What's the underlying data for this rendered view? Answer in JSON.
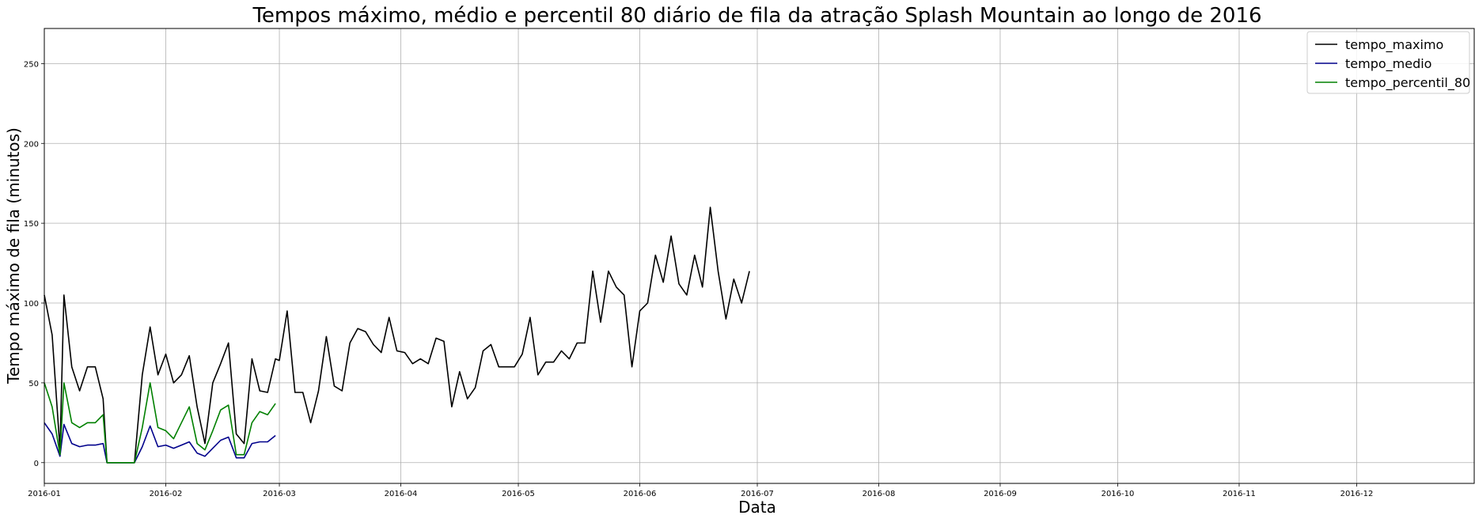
{
  "chart_data": {
    "type": "line",
    "title": "Tempos máximo, médio e percentil 80 diário de fila da atração Splash Mountain ao longo de 2016",
    "xlabel": "Data",
    "ylabel": "Tempo máximo de fila (minutos)",
    "xlim": [
      "2016-01-01",
      "2016-12-31"
    ],
    "ylim": [
      -13,
      272
    ],
    "x_ticks": [
      "2016-01",
      "2016-02",
      "2016-03",
      "2016-04",
      "2016-05",
      "2016-06",
      "2016-07",
      "2016-08",
      "2016-09",
      "2016-10",
      "2016-11",
      "2016-12"
    ],
    "y_ticks": [
      0,
      50,
      100,
      150,
      200,
      250
    ],
    "grid": true,
    "legend_position": "top-right",
    "series": [
      {
        "name": "tempo_maximo",
        "color": "#000000",
        "points": [
          [
            "2016-01-01",
            105
          ],
          [
            "2016-01-03",
            80
          ],
          [
            "2016-01-05",
            8
          ],
          [
            "2016-01-06",
            105
          ],
          [
            "2016-01-08",
            60
          ],
          [
            "2016-01-10",
            45
          ],
          [
            "2016-01-12",
            60
          ],
          [
            "2016-01-14",
            60
          ],
          [
            "2016-01-16",
            40
          ],
          [
            "2016-01-17",
            0
          ],
          [
            "2016-01-24",
            0
          ],
          [
            "2016-01-26",
            55
          ],
          [
            "2016-01-28",
            85
          ],
          [
            "2016-01-30",
            55
          ],
          [
            "2016-02-01",
            68
          ],
          [
            "2016-02-03",
            50
          ],
          [
            "2016-02-05",
            55
          ],
          [
            "2016-02-07",
            67
          ],
          [
            "2016-02-09",
            35
          ],
          [
            "2016-02-11",
            12
          ],
          [
            "2016-02-13",
            50
          ],
          [
            "2016-02-15",
            62
          ],
          [
            "2016-02-17",
            75
          ],
          [
            "2016-02-19",
            18
          ],
          [
            "2016-02-21",
            12
          ],
          [
            "2016-02-23",
            65
          ],
          [
            "2016-02-25",
            45
          ],
          [
            "2016-02-27",
            44
          ],
          [
            "2016-02-29",
            65
          ],
          [
            "2016-03-01",
            64
          ],
          [
            "2016-03-03",
            95
          ],
          [
            "2016-03-05",
            44
          ],
          [
            "2016-03-07",
            44
          ],
          [
            "2016-03-09",
            25
          ],
          [
            "2016-03-11",
            45
          ],
          [
            "2016-03-13",
            79
          ],
          [
            "2016-03-15",
            48
          ],
          [
            "2016-03-17",
            45
          ],
          [
            "2016-03-19",
            75
          ],
          [
            "2016-03-21",
            84
          ],
          [
            "2016-03-23",
            82
          ],
          [
            "2016-03-25",
            74
          ],
          [
            "2016-03-27",
            69
          ],
          [
            "2016-03-29",
            91
          ],
          [
            "2016-03-31",
            70
          ],
          [
            "2016-04-02",
            69
          ],
          [
            "2016-04-04",
            62
          ],
          [
            "2016-04-06",
            65
          ],
          [
            "2016-04-08",
            62
          ],
          [
            "2016-04-10",
            78
          ],
          [
            "2016-04-12",
            76
          ],
          [
            "2016-04-14",
            35
          ],
          [
            "2016-04-16",
            57
          ],
          [
            "2016-04-18",
            40
          ],
          [
            "2016-04-20",
            47
          ],
          [
            "2016-04-22",
            70
          ],
          [
            "2016-04-24",
            74
          ],
          [
            "2016-04-26",
            60
          ],
          [
            "2016-04-28",
            60
          ],
          [
            "2016-04-30",
            60
          ],
          [
            "2016-05-02",
            68
          ],
          [
            "2016-05-04",
            91
          ],
          [
            "2016-05-06",
            55
          ],
          [
            "2016-05-08",
            63
          ],
          [
            "2016-05-10",
            63
          ],
          [
            "2016-05-12",
            70
          ],
          [
            "2016-05-14",
            65
          ],
          [
            "2016-05-16",
            75
          ],
          [
            "2016-05-18",
            75
          ],
          [
            "2016-05-20",
            120
          ],
          [
            "2016-05-22",
            88
          ],
          [
            "2016-05-24",
            120
          ],
          [
            "2016-05-26",
            110
          ],
          [
            "2016-05-28",
            105
          ],
          [
            "2016-05-30",
            60
          ],
          [
            "2016-06-01",
            95
          ],
          [
            "2016-06-03",
            100
          ],
          [
            "2016-06-05",
            130
          ],
          [
            "2016-06-07",
            113
          ],
          [
            "2016-06-09",
            142
          ],
          [
            "2016-06-11",
            112
          ],
          [
            "2016-06-13",
            105
          ],
          [
            "2016-06-15",
            130
          ],
          [
            "2016-06-17",
            110
          ],
          [
            "2016-06-19",
            160
          ],
          [
            "2016-06-21",
            120
          ],
          [
            "2016-06-23",
            90
          ],
          [
            "2016-06-25",
            115
          ],
          [
            "2016-06-27",
            100
          ],
          [
            "2016-06-29",
            120
          ]
        ]
      },
      {
        "name": "tempo_medio",
        "color": "#00008b",
        "points": [
          [
            "2016-01-01",
            25
          ],
          [
            "2016-01-03",
            18
          ],
          [
            "2016-01-05",
            4
          ],
          [
            "2016-01-06",
            24
          ],
          [
            "2016-01-08",
            12
          ],
          [
            "2016-01-10",
            10
          ],
          [
            "2016-01-12",
            11
          ],
          [
            "2016-01-14",
            11
          ],
          [
            "2016-01-16",
            12
          ],
          [
            "2016-01-17",
            0
          ],
          [
            "2016-01-24",
            0
          ],
          [
            "2016-01-26",
            10
          ],
          [
            "2016-01-28",
            23
          ],
          [
            "2016-01-30",
            10
          ],
          [
            "2016-02-01",
            11
          ],
          [
            "2016-02-03",
            9
          ],
          [
            "2016-02-05",
            11
          ],
          [
            "2016-02-07",
            13
          ],
          [
            "2016-02-09",
            6
          ],
          [
            "2016-02-11",
            4
          ],
          [
            "2016-02-13",
            9
          ],
          [
            "2016-02-15",
            14
          ],
          [
            "2016-02-17",
            16
          ],
          [
            "2016-02-19",
            3
          ],
          [
            "2016-02-21",
            3
          ],
          [
            "2016-02-23",
            12
          ],
          [
            "2016-02-25",
            13
          ],
          [
            "2016-02-27",
            13
          ],
          [
            "2016-02-29",
            17
          ]
        ]
      },
      {
        "name": "tempo_percentil_80",
        "color": "#008000",
        "points": [
          [
            "2016-01-01",
            50
          ],
          [
            "2016-01-03",
            35
          ],
          [
            "2016-01-05",
            5
          ],
          [
            "2016-01-06",
            50
          ],
          [
            "2016-01-08",
            25
          ],
          [
            "2016-01-10",
            22
          ],
          [
            "2016-01-12",
            25
          ],
          [
            "2016-01-14",
            25
          ],
          [
            "2016-01-16",
            30
          ],
          [
            "2016-01-17",
            0
          ],
          [
            "2016-01-24",
            0
          ],
          [
            "2016-01-26",
            22
          ],
          [
            "2016-01-28",
            50
          ],
          [
            "2016-01-30",
            22
          ],
          [
            "2016-02-01",
            20
          ],
          [
            "2016-02-03",
            15
          ],
          [
            "2016-02-05",
            25
          ],
          [
            "2016-02-07",
            35
          ],
          [
            "2016-02-09",
            12
          ],
          [
            "2016-02-11",
            8
          ],
          [
            "2016-02-13",
            20
          ],
          [
            "2016-02-15",
            33
          ],
          [
            "2016-02-17",
            36
          ],
          [
            "2016-02-19",
            5
          ],
          [
            "2016-02-21",
            5
          ],
          [
            "2016-02-23",
            25
          ],
          [
            "2016-02-25",
            32
          ],
          [
            "2016-02-27",
            30
          ],
          [
            "2016-02-29",
            37
          ]
        ]
      }
    ]
  }
}
